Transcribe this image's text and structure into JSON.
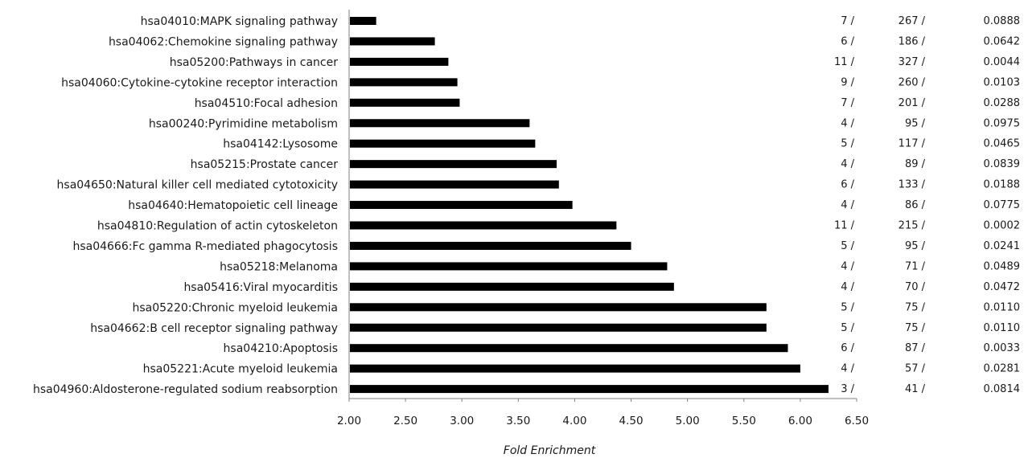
{
  "chart_data": {
    "type": "bar",
    "orientation": "horizontal",
    "xlabel": "Fold Enrichment",
    "xlim": [
      2.0,
      6.5
    ],
    "ticks": [
      "2.00",
      "2.50",
      "3.00",
      "3.50",
      "4.00",
      "4.50",
      "5.00",
      "5.50",
      "6.00",
      "6.50"
    ],
    "grid": false,
    "bar_color": "#000000",
    "categories": [
      "hsa04010:MAPK signaling pathway",
      "hsa04062:Chemokine signaling pathway",
      "hsa05200:Pathways in cancer",
      "hsa04060:Cytokine-cytokine receptor interaction",
      "hsa04510:Focal adhesion",
      "hsa00240:Pyrimidine metabolism",
      "hsa04142:Lysosome",
      "hsa05215:Prostate cancer",
      "hsa04650:Natural killer cell mediated cytotoxicity",
      "hsa04640:Hematopoietic cell lineage",
      "hsa04810:Regulation of actin cytoskeleton",
      "hsa04666:Fc gamma R-mediated phagocytosis",
      "hsa05218:Melanoma",
      "hsa05416:Viral myocarditis",
      "hsa05220:Chronic myeloid leukemia",
      "hsa04662:B cell receptor signaling pathway",
      "hsa04210:Apoptosis",
      "hsa05221:Acute myeloid leukemia",
      "hsa04960:Aldosterone-regulated sodium reabsorption"
    ],
    "values": [
      2.24,
      2.76,
      2.88,
      2.96,
      2.98,
      3.6,
      3.65,
      3.84,
      3.86,
      3.98,
      4.37,
      4.5,
      4.82,
      4.88,
      5.7,
      5.7,
      5.89,
      6.0,
      6.25
    ],
    "counts": [
      "7 /",
      "6 /",
      "11 /",
      "9 /",
      "7 /",
      "4 /",
      "5 /",
      "4 /",
      "6 /",
      "4 /",
      "11 /",
      "5 /",
      "4 /",
      "4 /",
      "5 /",
      "5 /",
      "6 /",
      "4 /",
      "3 /"
    ],
    "totals": [
      "267 /",
      "186 /",
      "327 /",
      "260 /",
      "201 /",
      "95 /",
      "117 /",
      "89 /",
      "133 /",
      "86 /",
      "215 /",
      "95 /",
      "71 /",
      "70 /",
      "75 /",
      "75 /",
      "87 /",
      "57 /",
      "41 /"
    ],
    "pvalues": [
      "0.0888",
      "0.0642",
      "0.0044",
      "0.0103",
      "0.0288",
      "0.0975",
      "0.0465",
      "0.0839",
      "0.0188",
      "0.0775",
      "0.0002",
      "0.0241",
      "0.0489",
      "0.0472",
      "0.0110",
      "0.0110",
      "0.0033",
      "0.0281",
      "0.0814"
    ]
  }
}
